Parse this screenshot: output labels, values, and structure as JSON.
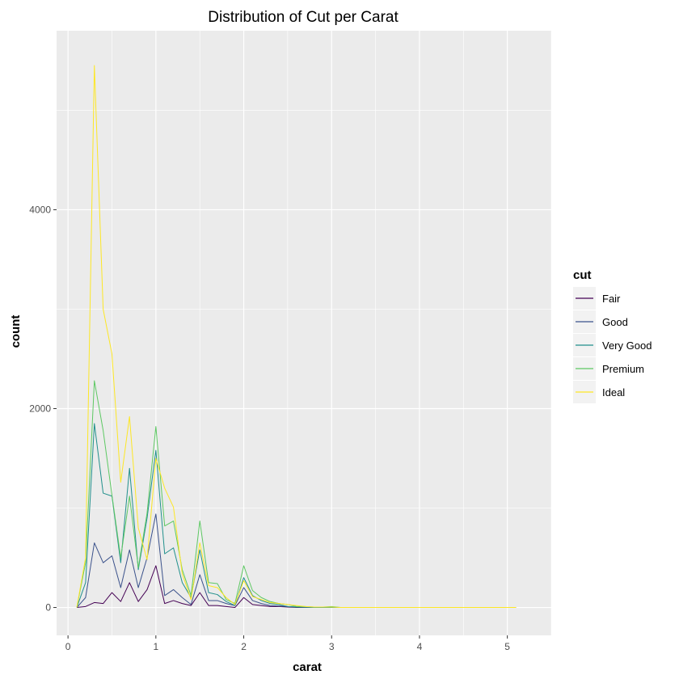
{
  "chart_data": {
    "type": "line",
    "title": "Distribution of Cut per Carat",
    "xlabel": "carat",
    "ylabel": "count",
    "xlim": [
      -0.13,
      5.5
    ],
    "ylim": [
      -280,
      5800
    ],
    "x_ticks": [
      0,
      1,
      2,
      3,
      4,
      5
    ],
    "y_ticks": [
      0,
      2000,
      4000
    ],
    "grid": true,
    "legend": {
      "title": "cut",
      "placement": "right"
    },
    "x": [
      0.1,
      0.2,
      0.3,
      0.4,
      0.5,
      0.6,
      0.7,
      0.8,
      0.9,
      1.0,
      1.1,
      1.2,
      1.3,
      1.4,
      1.5,
      1.6,
      1.7,
      1.8,
      1.9,
      2.0,
      2.1,
      2.2,
      2.3,
      2.4,
      2.5,
      2.6,
      2.7,
      2.8,
      2.9,
      3.0,
      3.1,
      3.2,
      3.3,
      3.4,
      3.5,
      3.6,
      3.7,
      3.8,
      3.9,
      4.0,
      4.1,
      4.2,
      4.3,
      4.4,
      4.5,
      4.6,
      4.7,
      4.8,
      4.9,
      5.0,
      5.1
    ],
    "series": [
      {
        "name": "Fair",
        "color": "#440154",
        "values": [
          0,
          10,
          50,
          40,
          150,
          60,
          250,
          60,
          180,
          420,
          40,
          70,
          40,
          20,
          150,
          20,
          20,
          10,
          0,
          100,
          30,
          20,
          10,
          10,
          5,
          0,
          0,
          0,
          0,
          0,
          0,
          0,
          0,
          0,
          0,
          0,
          0,
          0,
          0,
          0,
          0,
          0,
          0,
          0,
          0,
          0,
          0,
          0,
          0,
          0,
          0
        ]
      },
      {
        "name": "Good",
        "color": "#3b528b",
        "values": [
          0,
          100,
          650,
          450,
          520,
          200,
          580,
          200,
          500,
          940,
          120,
          180,
          100,
          30,
          330,
          70,
          70,
          40,
          20,
          200,
          70,
          40,
          20,
          15,
          10,
          5,
          0,
          0,
          0,
          0,
          0,
          0,
          0,
          0,
          0,
          0,
          0,
          0,
          0,
          0,
          0,
          0,
          0,
          0,
          0,
          0,
          0,
          0,
          0,
          0,
          0
        ]
      },
      {
        "name": "Very Good",
        "color": "#21908c",
        "values": [
          0,
          250,
          1850,
          1150,
          1120,
          450,
          1400,
          380,
          900,
          1580,
          540,
          600,
          250,
          100,
          580,
          150,
          130,
          60,
          20,
          300,
          120,
          70,
          40,
          30,
          10,
          5,
          5,
          0,
          0,
          0,
          0,
          0,
          0,
          0,
          0,
          0,
          0,
          0,
          0,
          0,
          0,
          0,
          0,
          0,
          0,
          0,
          0,
          0,
          0,
          0,
          0
        ]
      },
      {
        "name": "Premium",
        "color": "#5dc863",
        "values": [
          0,
          450,
          2280,
          1780,
          1130,
          500,
          1120,
          400,
          950,
          1820,
          820,
          870,
          380,
          120,
          870,
          250,
          240,
          80,
          40,
          420,
          170,
          100,
          60,
          40,
          30,
          10,
          10,
          5,
          5,
          10,
          0,
          0,
          0,
          0,
          0,
          0,
          0,
          0,
          0,
          0,
          0,
          0,
          0,
          0,
          0,
          0,
          0,
          0,
          0,
          0,
          0
        ]
      },
      {
        "name": "Ideal",
        "color": "#fde725",
        "values": [
          0,
          500,
          5450,
          3000,
          2550,
          1260,
          1920,
          800,
          480,
          1500,
          1200,
          1010,
          340,
          80,
          650,
          220,
          200,
          100,
          30,
          270,
          110,
          80,
          50,
          40,
          30,
          20,
          10,
          5,
          5,
          5,
          0,
          0,
          0,
          0,
          0,
          0,
          0,
          0,
          0,
          0,
          0,
          0,
          0,
          0,
          0,
          0,
          0,
          0,
          0,
          0,
          0
        ]
      }
    ]
  }
}
